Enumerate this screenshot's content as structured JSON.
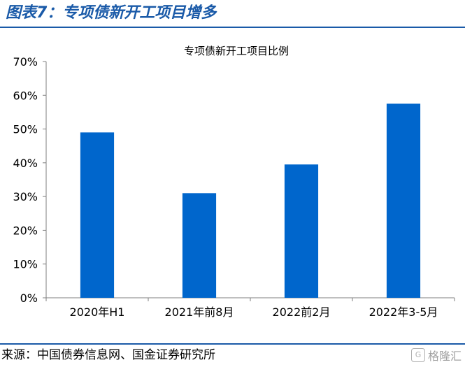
{
  "figure_title": "图表7：专项债新开工项目增多",
  "source_text": "来源：中国债券信息网、国金证券研究所",
  "watermark": {
    "icon": "G",
    "text": "格隆汇"
  },
  "colors": {
    "bar": "#0066cc",
    "accent": "#1a5aa8",
    "axis": "#7f7f7f"
  },
  "chart_data": {
    "type": "bar",
    "title": "专项债新开工项目比例",
    "categories": [
      "2020年H1",
      "2021年前8月",
      "2022前2月",
      "2022年3-5月"
    ],
    "values": [
      49,
      31,
      39.5,
      57.5
    ],
    "yticks": [
      "0%",
      "10%",
      "20%",
      "30%",
      "40%",
      "50%",
      "60%",
      "70%"
    ],
    "ylim": [
      0,
      70
    ],
    "xlabel": "",
    "ylabel": "",
    "grid": false,
    "legend": "none"
  }
}
